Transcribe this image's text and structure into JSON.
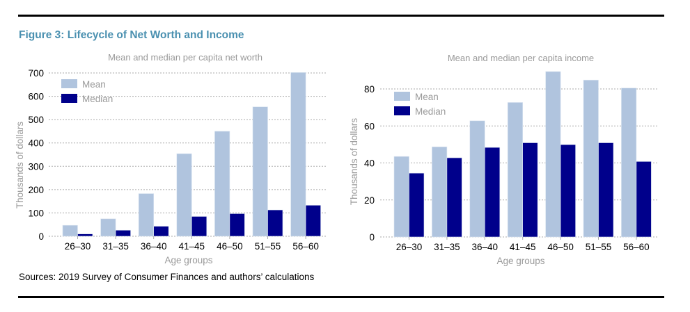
{
  "figure_title": "Figure 3: Lifecycle of Net Worth and Income",
  "sources": "Sources: 2019 Survey of Consumer Finances and authors’ calculations",
  "colors": {
    "mean": "#b0c4de",
    "median": "#00008b",
    "title": "#4a90b0",
    "muted": "#999999",
    "grid": "#aaaaaa"
  },
  "chart_data": [
    {
      "type": "bar",
      "title": "Mean and median per capita net worth",
      "xlabel": "Age groups",
      "ylabel": "Thousands of dollars",
      "categories": [
        "26–30",
        "31–35",
        "36–40",
        "41–45",
        "46–50",
        "51–55",
        "56–60"
      ],
      "series": [
        {
          "name": "Mean",
          "values": [
            47,
            75,
            183,
            354,
            450,
            555,
            702
          ]
        },
        {
          "name": "Median",
          "values": [
            10,
            26,
            43,
            85,
            97,
            113,
            133
          ]
        }
      ],
      "yticks": [
        0,
        100,
        200,
        300,
        400,
        500,
        600,
        700
      ],
      "ylim": [
        0,
        700
      ],
      "grid": true,
      "legend": "top-left"
    },
    {
      "type": "bar",
      "title": "Mean and median per capita income",
      "xlabel": "Age groups",
      "ylabel": "Thousands of dollars",
      "categories": [
        "26–30",
        "31–35",
        "36–40",
        "41–45",
        "46–50",
        "51–55",
        "56–60"
      ],
      "series": [
        {
          "name": "Mean",
          "values": [
            43.5,
            48.7,
            62.8,
            72.7,
            89.4,
            84.8,
            80.5
          ]
        },
        {
          "name": "Median",
          "values": [
            34.5,
            42.8,
            48.4,
            50.9,
            49.9,
            50.9,
            40.8
          ]
        }
      ],
      "yticks": [
        0,
        20,
        40,
        60,
        80
      ],
      "ylim": [
        0,
        80
      ],
      "grid": true,
      "legend": "top-left"
    }
  ]
}
